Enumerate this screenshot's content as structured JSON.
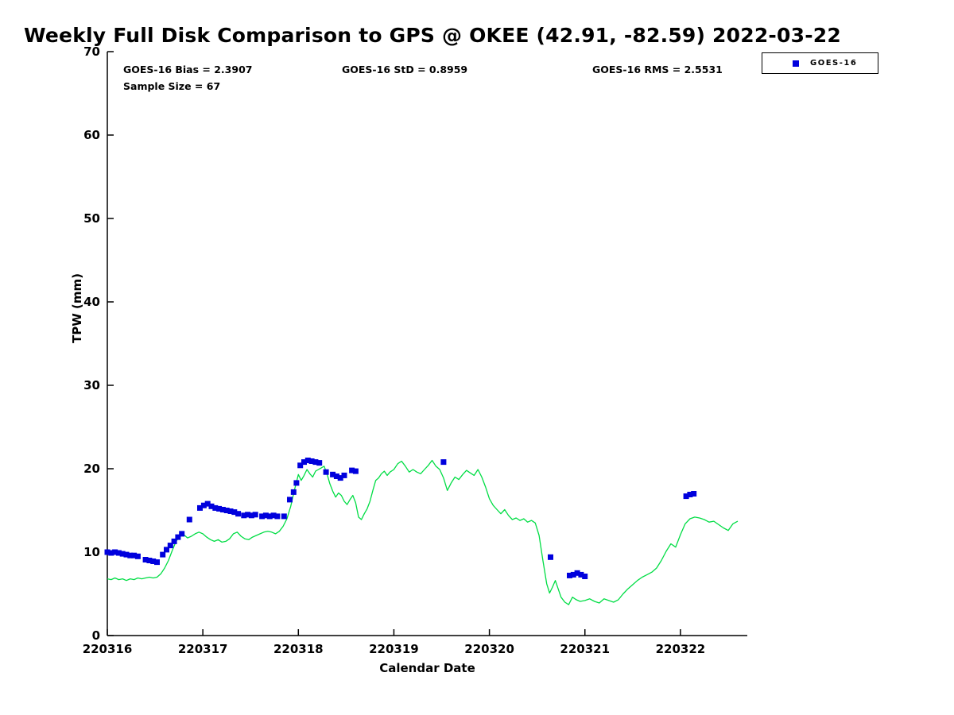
{
  "title": "Weekly Full Disk Comparison to GPS @ OKEE (42.91, -82.59) 2022-03-22",
  "annotations": {
    "bias": "GOES-16 Bias = 2.3907",
    "std": "GOES-16 StD = 0.8959",
    "rms": "GOES-16 RMS = 2.5531",
    "sample": "Sample Size = 67"
  },
  "legend": {
    "entries": [
      {
        "label": "GOES-16",
        "marker": "square",
        "marker_color": "#0000dd"
      }
    ]
  },
  "colors": {
    "gps_line": "#00dd44",
    "goes16_marker": "#0000dd",
    "axis": "#000000",
    "background": "#ffffff"
  },
  "chart_data": {
    "type": "line+scatter",
    "title": "Weekly Full Disk Comparison to GPS @ OKEE (42.91, -82.59) 2022-03-22",
    "xlabel": "Calendar Date",
    "ylabel": "TPW (mm)",
    "xlim": [
      220316,
      220322.7
    ],
    "ylim": [
      0,
      70
    ],
    "xticks": [
      220316,
      220317,
      220318,
      220319,
      220320,
      220321,
      220322
    ],
    "yticks": [
      0,
      10,
      20,
      30,
      40,
      50,
      60,
      70
    ],
    "grid": false,
    "legend_position": "top-right",
    "series": [
      {
        "name": "GPS",
        "type": "line",
        "color": "#00dd44",
        "x": [
          220316.0,
          220316.04,
          220316.08,
          220316.12,
          220316.16,
          220316.2,
          220316.24,
          220316.28,
          220316.32,
          220316.36,
          220316.4,
          220316.44,
          220316.48,
          220316.52,
          220316.56,
          220316.6,
          220316.64,
          220316.68,
          220316.72,
          220316.76,
          220316.8,
          220316.84,
          220316.88,
          220316.92,
          220316.96,
          220317.0,
          220317.04,
          220317.08,
          220317.12,
          220317.16,
          220317.2,
          220317.24,
          220317.28,
          220317.32,
          220317.36,
          220317.4,
          220317.44,
          220317.48,
          220317.52,
          220317.56,
          220317.6,
          220317.64,
          220317.68,
          220317.72,
          220317.76,
          220317.8,
          220317.84,
          220317.88,
          220317.92,
          220317.96,
          220318.0,
          220318.03,
          220318.06,
          220318.09,
          220318.12,
          220318.15,
          220318.18,
          220318.21,
          220318.24,
          220318.27,
          220318.3,
          220318.33,
          220318.36,
          220318.39,
          220318.42,
          220318.45,
          220318.48,
          220318.51,
          220318.54,
          220318.57,
          220318.6,
          220318.63,
          220318.66,
          220318.69,
          220318.72,
          220318.75,
          220318.78,
          220318.81,
          220318.84,
          220318.87,
          220318.9,
          220318.93,
          220318.96,
          220319.0,
          220319.04,
          220319.08,
          220319.12,
          220319.16,
          220319.2,
          220319.24,
          220319.28,
          220319.32,
          220319.36,
          220319.4,
          220319.44,
          220319.48,
          220319.52,
          220319.56,
          220319.6,
          220319.64,
          220319.68,
          220319.72,
          220319.76,
          220319.8,
          220319.84,
          220319.88,
          220319.92,
          220319.96,
          220320.0,
          220320.04,
          220320.08,
          220320.12,
          220320.16,
          220320.2,
          220320.24,
          220320.28,
          220320.32,
          220320.36,
          220320.4,
          220320.44,
          220320.48,
          220320.52,
          220320.56,
          220320.6,
          220320.63,
          220320.66,
          220320.69,
          220320.72,
          220320.75,
          220320.79,
          220320.83,
          220320.87,
          220320.91,
          220320.95,
          220321.0,
          220321.05,
          220321.1,
          220321.15,
          220321.2,
          220321.25,
          220321.3,
          220321.35,
          220321.4,
          220321.45,
          220321.5,
          220321.55,
          220321.6,
          220321.65,
          220321.7,
          220321.75,
          220321.8,
          220321.85,
          220321.9,
          220321.95,
          220322.0,
          220322.05,
          220322.1,
          220322.15,
          220322.2,
          220322.25,
          220322.3,
          220322.35,
          220322.4,
          220322.45,
          220322.5,
          220322.55,
          220322.6
        ],
        "y": [
          6.8,
          6.7,
          6.9,
          6.7,
          6.8,
          6.6,
          6.8,
          6.7,
          6.9,
          6.8,
          6.9,
          7.0,
          6.9,
          7.0,
          7.4,
          8.1,
          9.0,
          10.2,
          11.3,
          11.9,
          12.1,
          11.7,
          11.9,
          12.2,
          12.4,
          12.2,
          11.8,
          11.5,
          11.3,
          11.5,
          11.2,
          11.3,
          11.6,
          12.2,
          12.4,
          11.9,
          11.6,
          11.5,
          11.8,
          12.0,
          12.2,
          12.4,
          12.5,
          12.4,
          12.2,
          12.5,
          13.1,
          14.0,
          15.5,
          17.5,
          19.3,
          18.6,
          19.2,
          19.9,
          19.4,
          19.0,
          19.7,
          19.9,
          20.1,
          20.3,
          19.4,
          18.2,
          17.3,
          16.6,
          17.1,
          16.8,
          16.1,
          15.7,
          16.3,
          16.8,
          15.9,
          14.2,
          13.9,
          14.6,
          15.2,
          16.1,
          17.4,
          18.6,
          18.9,
          19.4,
          19.7,
          19.2,
          19.6,
          19.9,
          20.6,
          20.9,
          20.3,
          19.6,
          19.9,
          19.6,
          19.4,
          19.9,
          20.4,
          21.0,
          20.3,
          19.9,
          18.9,
          17.4,
          18.3,
          19.0,
          18.7,
          19.3,
          19.8,
          19.5,
          19.2,
          19.9,
          19.0,
          17.8,
          16.4,
          15.6,
          15.1,
          14.6,
          15.1,
          14.4,
          13.9,
          14.1,
          13.8,
          14.0,
          13.6,
          13.8,
          13.5,
          12.0,
          9.0,
          6.2,
          5.1,
          5.8,
          6.6,
          5.6,
          4.6,
          4.0,
          3.7,
          4.6,
          4.3,
          4.1,
          4.2,
          4.4,
          4.1,
          3.9,
          4.4,
          4.2,
          4.0,
          4.3,
          5.0,
          5.6,
          6.1,
          6.6,
          7.0,
          7.3,
          7.6,
          8.1,
          9.0,
          10.1,
          11.0,
          10.6,
          12.1,
          13.4,
          14.0,
          14.2,
          14.1,
          13.9,
          13.6,
          13.7,
          13.3,
          12.9,
          12.6,
          13.4,
          13.7
        ]
      },
      {
        "name": "GOES-16",
        "type": "scatter",
        "marker": "square",
        "color": "#0000dd",
        "x": [
          220316.0,
          220316.04,
          220316.08,
          220316.12,
          220316.16,
          220316.2,
          220316.24,
          220316.28,
          220316.32,
          220316.4,
          220316.44,
          220316.48,
          220316.52,
          220316.58,
          220316.62,
          220316.66,
          220316.7,
          220316.74,
          220316.78,
          220316.86,
          220316.97,
          220317.01,
          220317.05,
          220317.09,
          220317.13,
          220317.17,
          220317.21,
          220317.25,
          220317.29,
          220317.33,
          220317.37,
          220317.43,
          220317.47,
          220317.51,
          220317.55,
          220317.62,
          220317.66,
          220317.7,
          220317.74,
          220317.78,
          220317.85,
          220317.91,
          220317.95,
          220317.98,
          220318.02,
          220318.06,
          220318.1,
          220318.14,
          220318.18,
          220318.22,
          220318.29,
          220318.36,
          220318.4,
          220318.44,
          220318.48,
          220318.56,
          220318.6,
          220319.52,
          220320.64,
          220320.84,
          220320.88,
          220320.92,
          220320.96,
          220321.0,
          220322.06,
          220322.1,
          220322.14
        ],
        "y": [
          10.0,
          9.9,
          10.0,
          9.9,
          9.8,
          9.7,
          9.6,
          9.6,
          9.5,
          9.1,
          9.0,
          8.9,
          8.8,
          9.7,
          10.3,
          10.8,
          11.3,
          11.8,
          12.2,
          13.9,
          15.3,
          15.6,
          15.8,
          15.5,
          15.3,
          15.2,
          15.1,
          15.0,
          14.9,
          14.8,
          14.6,
          14.4,
          14.5,
          14.4,
          14.5,
          14.3,
          14.4,
          14.3,
          14.4,
          14.3,
          14.3,
          16.3,
          17.2,
          18.3,
          20.4,
          20.8,
          21.0,
          20.9,
          20.8,
          20.7,
          19.6,
          19.3,
          19.1,
          18.9,
          19.2,
          19.8,
          19.7,
          20.8,
          9.4,
          7.2,
          7.3,
          7.5,
          7.3,
          7.1,
          16.7,
          16.9,
          17.0
        ]
      }
    ]
  }
}
